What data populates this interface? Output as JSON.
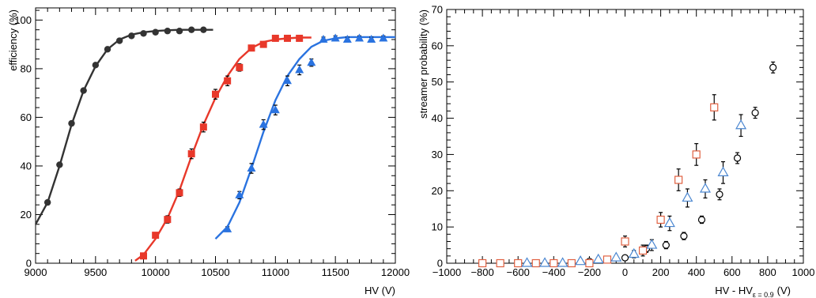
{
  "chart_data": [
    {
      "type": "line",
      "title": "",
      "xlabel": "HV (V)",
      "ylabel": "efficiency (%)",
      "xlim": [
        9000,
        12000
      ],
      "ylim": [
        0,
        105
      ],
      "xticks": [
        9000,
        9500,
        10000,
        10500,
        11000,
        11500,
        12000
      ],
      "yticks": [
        0,
        20,
        40,
        60,
        80,
        100
      ],
      "grid": false,
      "legend": "none",
      "series": [
        {
          "color": "#333333",
          "marker": "circle",
          "x": [
            9100,
            9200,
            9300,
            9400,
            9500,
            9600,
            9700,
            9800,
            9900,
            10000,
            10100,
            10200,
            10300,
            10400
          ],
          "y": [
            25,
            40.5,
            57.5,
            71,
            81.5,
            88,
            91.5,
            93.5,
            94.5,
            95,
            95.5,
            95.5,
            96,
            96
          ],
          "err": [
            0.5,
            0.5,
            0.5,
            0.5,
            0.5,
            0.5,
            0.5,
            0.5,
            0.5,
            0.5,
            0.5,
            0.5,
            0.5,
            0.5
          ],
          "fit_x": [
            9000,
            9100,
            9200,
            9300,
            9400,
            9500,
            9600,
            9700,
            9800,
            9900,
            10000,
            10100,
            10200,
            10300,
            10400,
            10480
          ],
          "fit_y": [
            16,
            25,
            40,
            57,
            71,
            81,
            88,
            92,
            94,
            95,
            95.5,
            95.8,
            96,
            96,
            96,
            96
          ]
        },
        {
          "color": "#e8382a",
          "marker": "square",
          "x": [
            9900,
            10000,
            10100,
            10200,
            10300,
            10400,
            10500,
            10600,
            10700,
            10800,
            10900,
            11000,
            11100,
            11200
          ],
          "y": [
            3,
            11.5,
            18,
            29,
            45,
            56,
            69.5,
            75,
            80.5,
            88.5,
            90,
            92.5,
            92.5,
            92.5
          ],
          "err": [
            0.5,
            1,
            1.5,
            1.5,
            2,
            2,
            2,
            2,
            1.5,
            1,
            1,
            0.8,
            0.8,
            0.8
          ],
          "fit_x": [
            9830,
            9900,
            10000,
            10100,
            10200,
            10300,
            10400,
            10500,
            10600,
            10700,
            10800,
            10900,
            11000,
            11100,
            11200,
            11300
          ],
          "fit_y": [
            1,
            3.5,
            10,
            18.5,
            30,
            44,
            57,
            68,
            77,
            84,
            88.5,
            91,
            92,
            92.5,
            92.8,
            92.8
          ]
        },
        {
          "color": "#2a73e0",
          "marker": "triangle",
          "x": [
            10600,
            10700,
            10800,
            10900,
            11000,
            11100,
            11200,
            11300,
            11400,
            11500,
            11600,
            11700,
            11800,
            11900
          ],
          "y": [
            14,
            28,
            39,
            57,
            63,
            75,
            79.5,
            82.5,
            92,
            92.5,
            92,
            92.5,
            92,
            92.5
          ],
          "err": [
            1,
            1.5,
            2,
            2,
            2,
            2,
            2,
            1.5,
            1,
            1,
            1,
            1,
            1,
            1
          ],
          "fit_x": [
            10500,
            10600,
            10700,
            10800,
            10900,
            11000,
            11100,
            11200,
            11300,
            11400,
            11500,
            11600,
            11800,
            12000
          ],
          "fit_y": [
            10,
            15,
            25,
            39,
            54,
            67,
            77,
            84,
            89,
            91.5,
            92.5,
            93,
            93,
            93
          ]
        }
      ]
    },
    {
      "type": "scatter",
      "title": "",
      "xlabel": "HV - HV",
      "xlabel_sub": "ε = 0.9",
      "xlabel_unit": "(V)",
      "ylabel": "streamer probability (%)",
      "xlim": [
        -1000,
        1000
      ],
      "ylim": [
        0,
        70
      ],
      "xticks": [
        -1000,
        -800,
        -600,
        -400,
        -200,
        0,
        200,
        400,
        600,
        800,
        1000
      ],
      "yticks": [
        0,
        10,
        20,
        30,
        40,
        50,
        60,
        70
      ],
      "grid": false,
      "legend": "none",
      "series": [
        {
          "color": "#000000",
          "marker": "open-circle",
          "x": [
            -800,
            -700,
            -600,
            -500,
            -400,
            -300,
            -200,
            -100,
            0,
            100,
            120,
            230,
            330,
            430,
            530,
            630,
            730,
            830
          ],
          "y": [
            0,
            0,
            0,
            0,
            0,
            0,
            0.5,
            1,
            1.5,
            3.5,
            4,
            5,
            7.5,
            12,
            19,
            29,
            41.5,
            54
          ],
          "err": [
            0.3,
            0.3,
            0.3,
            0.3,
            0.3,
            0.3,
            0.3,
            0.5,
            0.5,
            1,
            1,
            1,
            1,
            1,
            1.5,
            1.5,
            1.5,
            1.5
          ]
        },
        {
          "color": "#e06040",
          "marker": "open-square",
          "x": [
            -800,
            -700,
            -600,
            -500,
            -400,
            -300,
            -200,
            -100,
            0,
            100,
            200,
            300,
            400,
            500
          ],
          "y": [
            0,
            0,
            0,
            0,
            0,
            0,
            0,
            1,
            6,
            3.5,
            12,
            23,
            30,
            43
          ],
          "err": [
            0.3,
            0.3,
            0.3,
            0.3,
            0.3,
            0.3,
            0.3,
            0.5,
            1.5,
            1.5,
            2,
            3,
            3,
            3.5
          ]
        },
        {
          "color": "#4a86d0",
          "marker": "open-triangle",
          "x": [
            -550,
            -450,
            -350,
            -250,
            -150,
            -50,
            50,
            150,
            250,
            350,
            450,
            550,
            650
          ],
          "y": [
            0,
            0,
            0,
            0.5,
            1,
            1.5,
            2.5,
            5,
            11,
            18,
            20.5,
            25,
            38
          ],
          "err": [
            0.3,
            0.3,
            0.3,
            0.3,
            0.5,
            0.5,
            1,
            1.5,
            2,
            2.5,
            2.5,
            3,
            3
          ]
        }
      ]
    }
  ]
}
